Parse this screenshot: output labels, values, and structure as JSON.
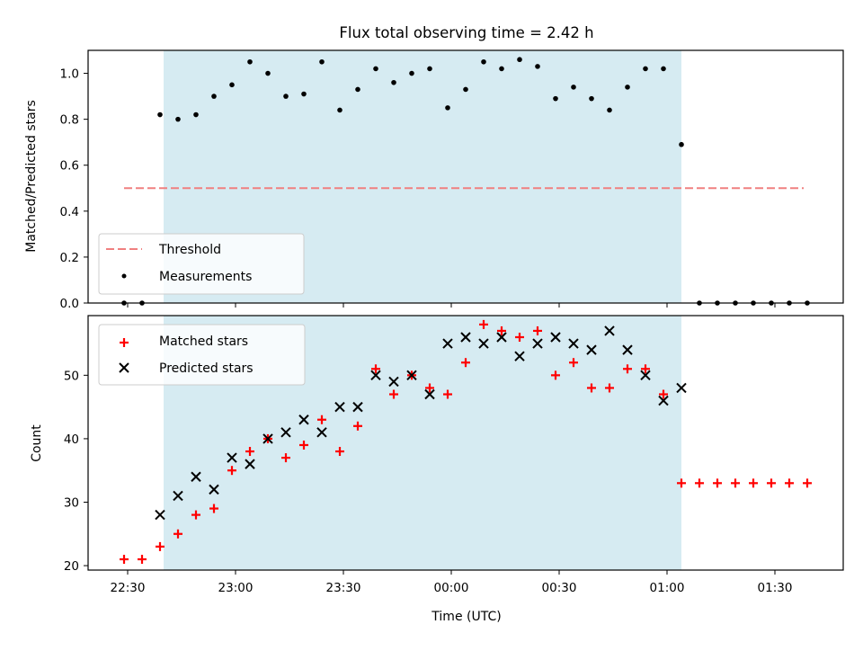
{
  "chart_data": [
    {
      "type": "scatter",
      "title": "Flux total observing time = 2.42 h",
      "ylabel": "Matched/Predicted stars",
      "ylim": [
        0,
        1.1
      ],
      "yticks": [
        0.0,
        0.2,
        0.4,
        0.6,
        0.8,
        1.0
      ],
      "ytick_labels": [
        "0.0",
        "0.2",
        "0.4",
        "0.6",
        "0.8",
        "1.0"
      ],
      "shaded_region": {
        "start": "22:40",
        "end": "01:04"
      },
      "threshold": {
        "value": 0.5,
        "start": "22:29",
        "end": "01:38",
        "color": "#f08080"
      },
      "legend": {
        "position": "lower-left",
        "items": [
          {
            "label": "Threshold",
            "kind": "dashed-line",
            "color": "#f08080"
          },
          {
            "label": "Measurements",
            "kind": "dot",
            "color": "#000000"
          }
        ]
      },
      "series": [
        {
          "name": "Measurements",
          "color": "#000000",
          "points": [
            [
              "22:29",
              0.0
            ],
            [
              "22:34",
              0.0
            ],
            [
              "22:39",
              0.82
            ],
            [
              "22:44",
              0.8
            ],
            [
              "22:49",
              0.82
            ],
            [
              "22:54",
              0.9
            ],
            [
              "22:59",
              0.95
            ],
            [
              "23:04",
              1.05
            ],
            [
              "23:09",
              1.0
            ],
            [
              "23:14",
              0.9
            ],
            [
              "23:19",
              0.91
            ],
            [
              "23:24",
              1.05
            ],
            [
              "23:29",
              0.84
            ],
            [
              "23:34",
              0.93
            ],
            [
              "23:39",
              1.02
            ],
            [
              "23:44",
              0.96
            ],
            [
              "23:49",
              1.0
            ],
            [
              "23:54",
              1.02
            ],
            [
              "23:59",
              0.85
            ],
            [
              "00:04",
              0.93
            ],
            [
              "00:09",
              1.05
            ],
            [
              "00:14",
              1.02
            ],
            [
              "00:19",
              1.06
            ],
            [
              "00:24",
              1.03
            ],
            [
              "00:29",
              0.89
            ],
            [
              "00:34",
              0.94
            ],
            [
              "00:39",
              0.89
            ],
            [
              "00:44",
              0.84
            ],
            [
              "00:49",
              0.94
            ],
            [
              "00:54",
              1.02
            ],
            [
              "00:59",
              1.02
            ],
            [
              "01:04",
              0.69
            ],
            [
              "01:09",
              0.0
            ],
            [
              "01:14",
              0.0
            ],
            [
              "01:19",
              0.0
            ],
            [
              "01:24",
              0.0
            ],
            [
              "01:29",
              0.0
            ],
            [
              "01:34",
              0.0
            ],
            [
              "01:39",
              0.0
            ]
          ]
        }
      ]
    },
    {
      "type": "scatter",
      "xlabel": "Time (UTC)",
      "ylabel": "Count",
      "ylim": [
        19.3,
        59.4
      ],
      "yticks": [
        20,
        30,
        40,
        50
      ],
      "ytick_labels": [
        "20",
        "30",
        "40",
        "50"
      ],
      "xticks": [
        "22:30",
        "23:00",
        "23:30",
        "00:00",
        "00:30",
        "01:00",
        "01:30"
      ],
      "shaded_region": {
        "start": "22:40",
        "end": "01:04"
      },
      "legend": {
        "position": "upper-left",
        "items": [
          {
            "label": "Matched stars",
            "kind": "plus",
            "color": "#ff0000"
          },
          {
            "label": "Predicted stars",
            "kind": "x",
            "color": "#000000"
          }
        ]
      },
      "series": [
        {
          "name": "Matched stars",
          "marker": "plus",
          "color": "#ff0000",
          "points": [
            [
              "22:29",
              21
            ],
            [
              "22:34",
              21
            ],
            [
              "22:39",
              23
            ],
            [
              "22:44",
              25
            ],
            [
              "22:49",
              28
            ],
            [
              "22:54",
              29
            ],
            [
              "22:59",
              35
            ],
            [
              "23:04",
              38
            ],
            [
              "23:09",
              40
            ],
            [
              "23:14",
              37
            ],
            [
              "23:19",
              39
            ],
            [
              "23:24",
              43
            ],
            [
              "23:29",
              38
            ],
            [
              "23:34",
              42
            ],
            [
              "23:39",
              51
            ],
            [
              "23:44",
              47
            ],
            [
              "23:49",
              50
            ],
            [
              "23:54",
              48
            ],
            [
              "23:59",
              47
            ],
            [
              "00:04",
              52
            ],
            [
              "00:09",
              58
            ],
            [
              "00:14",
              57
            ],
            [
              "00:19",
              56
            ],
            [
              "00:24",
              57
            ],
            [
              "00:29",
              50
            ],
            [
              "00:34",
              52
            ],
            [
              "00:39",
              48
            ],
            [
              "00:44",
              48
            ],
            [
              "00:49",
              51
            ],
            [
              "00:54",
              51
            ],
            [
              "00:59",
              47
            ],
            [
              "01:04",
              33
            ],
            [
              "01:09",
              33
            ],
            [
              "01:14",
              33
            ],
            [
              "01:19",
              33
            ],
            [
              "01:24",
              33
            ],
            [
              "01:29",
              33
            ],
            [
              "01:34",
              33
            ],
            [
              "01:39",
              33
            ]
          ]
        },
        {
          "name": "Predicted stars",
          "marker": "x",
          "color": "#000000",
          "points": [
            [
              "22:39",
              28
            ],
            [
              "22:44",
              31
            ],
            [
              "22:49",
              34
            ],
            [
              "22:54",
              32
            ],
            [
              "22:59",
              37
            ],
            [
              "23:04",
              36
            ],
            [
              "23:09",
              40
            ],
            [
              "23:14",
              41
            ],
            [
              "23:19",
              43
            ],
            [
              "23:24",
              41
            ],
            [
              "23:29",
              45
            ],
            [
              "23:34",
              45
            ],
            [
              "23:39",
              50
            ],
            [
              "23:44",
              49
            ],
            [
              "23:49",
              50
            ],
            [
              "23:54",
              47
            ],
            [
              "23:59",
              55
            ],
            [
              "00:04",
              56
            ],
            [
              "00:09",
              55
            ],
            [
              "00:14",
              56
            ],
            [
              "00:19",
              53
            ],
            [
              "00:24",
              55
            ],
            [
              "00:29",
              56
            ],
            [
              "00:34",
              55
            ],
            [
              "00:39",
              54
            ],
            [
              "00:44",
              57
            ],
            [
              "00:49",
              54
            ],
            [
              "00:54",
              50
            ],
            [
              "00:59",
              46
            ],
            [
              "01:04",
              48
            ]
          ]
        }
      ]
    }
  ]
}
